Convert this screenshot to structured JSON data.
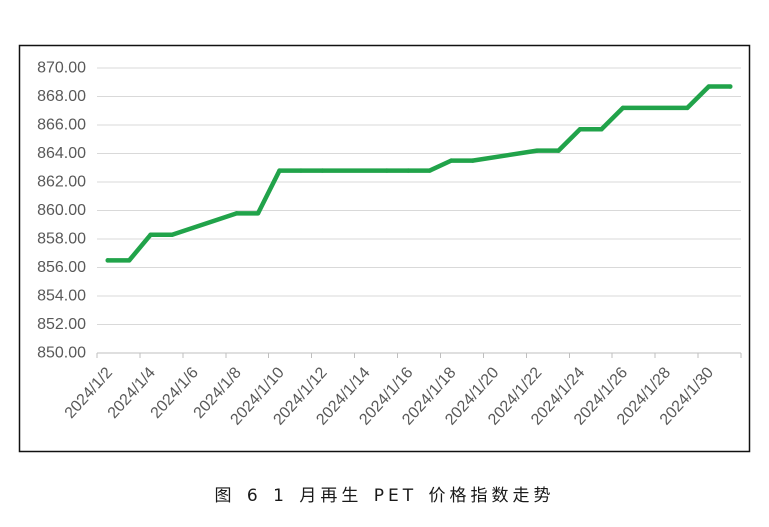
{
  "caption": "图 6 1 月再生 PET 价格指数走势",
  "chart_data": {
    "type": "line",
    "ylim": [
      850,
      870
    ],
    "grid": true,
    "y_tick_labels": [
      "850.00",
      "852.00",
      "854.00",
      "856.00",
      "858.00",
      "860.00",
      "862.00",
      "864.00",
      "866.00",
      "868.00",
      "870.00"
    ],
    "x_tick_labels": [
      "2024/1/2",
      "2024/1/4",
      "2024/1/6",
      "2024/1/8",
      "2024/1/10",
      "2024/1/12",
      "2024/1/14",
      "2024/1/16",
      "2024/1/18",
      "2024/1/20",
      "2024/1/22",
      "2024/1/24",
      "2024/1/26",
      "2024/1/28",
      "2024/1/30"
    ],
    "series": [
      {
        "color": "#21a34a",
        "x": [
          "2024/1/2",
          "2024/1/3",
          "2024/1/4",
          "2024/1/5",
          "2024/1/8",
          "2024/1/9",
          "2024/1/10",
          "2024/1/11",
          "2024/1/12",
          "2024/1/15",
          "2024/1/16",
          "2024/1/17",
          "2024/1/18",
          "2024/1/19",
          "2024/1/22",
          "2024/1/23",
          "2024/1/24",
          "2024/1/25",
          "2024/1/26",
          "2024/1/29",
          "2024/1/30",
          "2024/1/31"
        ],
        "y": [
          856.5,
          856.5,
          858.3,
          858.3,
          859.8,
          859.8,
          862.8,
          862.8,
          862.8,
          862.8,
          862.8,
          862.8,
          863.5,
          863.5,
          864.2,
          864.2,
          865.7,
          865.7,
          867.2,
          867.2,
          868.7,
          868.7
        ]
      }
    ]
  }
}
